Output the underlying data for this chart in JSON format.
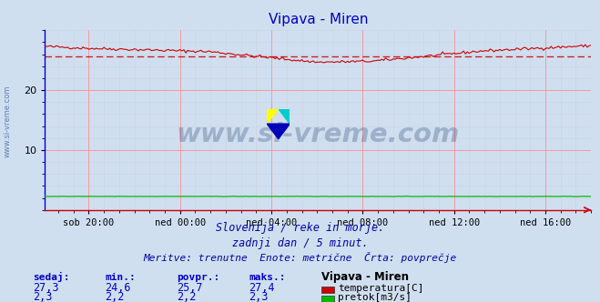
{
  "title": "Vipava - Miren",
  "title_color": "#0000cc",
  "bg_color": "#d0dff0",
  "plot_bg_color": "#d0dff0",
  "spine_color_left": "#0000dd",
  "spine_color_bottom": "#cc0000",
  "grid_color_major": "#ff8888",
  "grid_color_minor": "#c8c8d8",
  "temp_color": "#cc0000",
  "flow_color": "#00bb00",
  "avg_line_color": "#cc0000",
  "x_tick_labels": [
    "sob 20:00",
    "ned 00:00",
    "ned 04:00",
    "ned 08:00",
    "ned 12:00",
    "ned 16:00"
  ],
  "x_tick_fractions": [
    0.083,
    0.25,
    0.417,
    0.583,
    0.75,
    0.917
  ],
  "ylim": [
    0,
    30
  ],
  "yticks": [
    10,
    20
  ],
  "temp_avg": 25.7,
  "temp_min": 24.6,
  "temp_max": 27.4,
  "flow_min": 2.2,
  "flow_max": 2.3,
  "subtitle1": "Slovenija / reke in morje.",
  "subtitle2": "zadnji dan / 5 minut.",
  "subtitle3": "Meritve: trenutne  Enote: metrične  Črta: povprečje",
  "subtitle_color": "#0000aa",
  "table_headers": [
    "sedaj:",
    "min.:",
    "povpr.:",
    "maks.:",
    "Vipava - Miren"
  ],
  "table_row1": [
    "27,3",
    "24,6",
    "25,7",
    "27,4",
    "temperatura[C]"
  ],
  "table_row2": [
    "2,3",
    "2,2",
    "2,2",
    "2,3",
    "pretok[m3/s]"
  ],
  "table_header_color": "#0000cc",
  "table_data_color": "#0000cc",
  "legend_label_color": "#000000",
  "watermark_text": "www.si-vreme.com",
  "watermark_color": "#1a3a6a",
  "side_watermark_color": "#5577aa",
  "logo_colors": [
    "#ffff00",
    "#00cccc",
    "#0000bb"
  ]
}
